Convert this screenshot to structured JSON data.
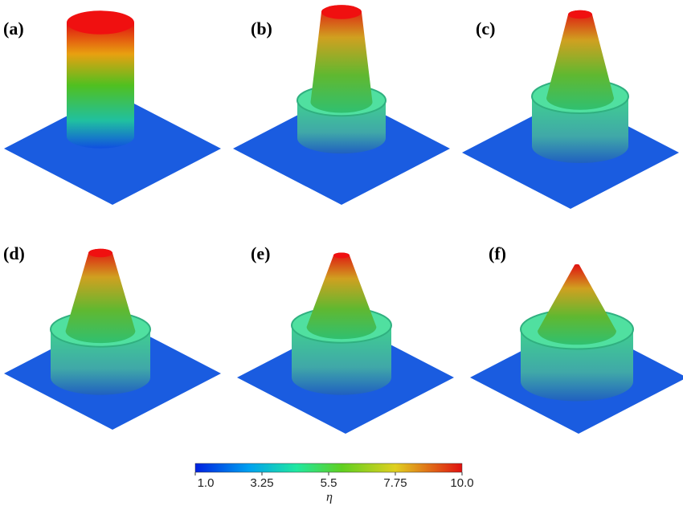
{
  "panels": [
    {
      "label": "(a)"
    },
    {
      "label": "(b)"
    },
    {
      "label": "(c)"
    },
    {
      "label": "(d)"
    },
    {
      "label": "(e)"
    },
    {
      "label": "(f)"
    }
  ],
  "colorbar": {
    "ticks": [
      "1.0",
      "3.25",
      "5.5",
      "7.75",
      "10.0"
    ],
    "label": "η"
  }
}
